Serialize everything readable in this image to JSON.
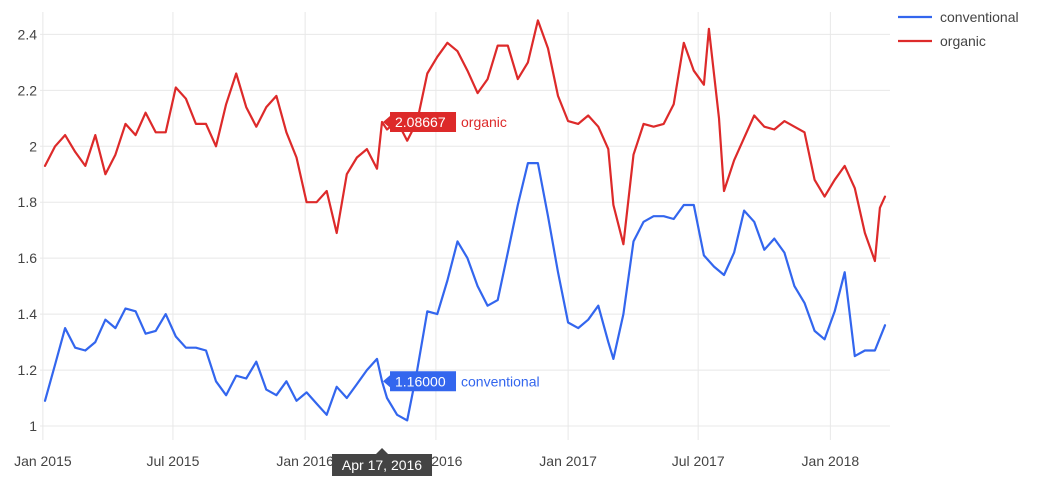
{
  "chart_data": {
    "type": "line",
    "y_ticks": [
      "1",
      "1.2",
      "1.4",
      "1.6",
      "1.8",
      "2",
      "2.2",
      "2.4"
    ],
    "x_ticks": [
      {
        "date": "2015-01-01",
        "label": "Jan 2015"
      },
      {
        "date": "2015-07-01",
        "label": "Jul 2015"
      },
      {
        "date": "2016-01-01",
        "label": "Jan 2016"
      },
      {
        "date": "2016-07-01",
        "label": "Jul 2016"
      },
      {
        "date": "2017-01-01",
        "label": "Jan 2017"
      },
      {
        "date": "2017-07-01",
        "label": "Jul 2017"
      },
      {
        "date": "2018-01-01",
        "label": "Jan 2018"
      }
    ],
    "x_range": [
      "2014-12-28",
      "2018-03-25"
    ],
    "ylim": [
      0.95,
      2.48
    ],
    "grid": true,
    "legend_position": "top-right",
    "series": [
      {
        "name": "conventional",
        "color": "#3366ee",
        "points": [
          [
            "2015-01-04",
            1.09
          ],
          [
            "2015-01-18",
            1.22
          ],
          [
            "2015-02-01",
            1.35
          ],
          [
            "2015-02-15",
            1.28
          ],
          [
            "2015-03-01",
            1.27
          ],
          [
            "2015-03-15",
            1.3
          ],
          [
            "2015-03-29",
            1.38
          ],
          [
            "2015-04-12",
            1.35
          ],
          [
            "2015-04-26",
            1.42
          ],
          [
            "2015-05-10",
            1.41
          ],
          [
            "2015-05-24",
            1.33
          ],
          [
            "2015-06-07",
            1.34
          ],
          [
            "2015-06-21",
            1.4
          ],
          [
            "2015-07-05",
            1.32
          ],
          [
            "2015-07-19",
            1.28
          ],
          [
            "2015-08-02",
            1.28
          ],
          [
            "2015-08-16",
            1.27
          ],
          [
            "2015-08-30",
            1.16
          ],
          [
            "2015-09-13",
            1.11
          ],
          [
            "2015-09-27",
            1.18
          ],
          [
            "2015-10-11",
            1.17
          ],
          [
            "2015-10-25",
            1.23
          ],
          [
            "2015-11-08",
            1.13
          ],
          [
            "2015-11-22",
            1.11
          ],
          [
            "2015-12-06",
            1.16
          ],
          [
            "2015-12-20",
            1.09
          ],
          [
            "2016-01-03",
            1.12
          ],
          [
            "2016-01-17",
            1.08
          ],
          [
            "2016-01-31",
            1.04
          ],
          [
            "2016-02-14",
            1.14
          ],
          [
            "2016-02-28",
            1.1
          ],
          [
            "2016-03-13",
            1.15
          ],
          [
            "2016-03-27",
            1.2
          ],
          [
            "2016-04-10",
            1.24
          ],
          [
            "2016-04-17",
            1.16
          ],
          [
            "2016-04-24",
            1.1
          ],
          [
            "2016-05-08",
            1.04
          ],
          [
            "2016-05-22",
            1.02
          ],
          [
            "2016-06-05",
            1.2
          ],
          [
            "2016-06-19",
            1.41
          ],
          [
            "2016-07-03",
            1.4
          ],
          [
            "2016-07-17",
            1.52
          ],
          [
            "2016-07-31",
            1.66
          ],
          [
            "2016-08-14",
            1.6
          ],
          [
            "2016-08-28",
            1.5
          ],
          [
            "2016-09-11",
            1.43
          ],
          [
            "2016-09-25",
            1.45
          ],
          [
            "2016-10-09",
            1.62
          ],
          [
            "2016-10-23",
            1.79
          ],
          [
            "2016-11-06",
            1.94
          ],
          [
            "2016-11-20",
            1.94
          ],
          [
            "2016-12-04",
            1.75
          ],
          [
            "2016-12-18",
            1.55
          ],
          [
            "2017-01-01",
            1.37
          ],
          [
            "2017-01-15",
            1.35
          ],
          [
            "2017-01-29",
            1.38
          ],
          [
            "2017-02-12",
            1.43
          ],
          [
            "2017-02-26",
            1.3
          ],
          [
            "2017-03-05",
            1.24
          ],
          [
            "2017-03-19",
            1.4
          ],
          [
            "2017-04-02",
            1.66
          ],
          [
            "2017-04-16",
            1.73
          ],
          [
            "2017-04-30",
            1.75
          ],
          [
            "2017-05-14",
            1.75
          ],
          [
            "2017-05-28",
            1.74
          ],
          [
            "2017-06-11",
            1.79
          ],
          [
            "2017-06-25",
            1.79
          ],
          [
            "2017-07-09",
            1.61
          ],
          [
            "2017-07-23",
            1.57
          ],
          [
            "2017-08-06",
            1.54
          ],
          [
            "2017-08-20",
            1.62
          ],
          [
            "2017-09-03",
            1.77
          ],
          [
            "2017-09-17",
            1.73
          ],
          [
            "2017-10-01",
            1.63
          ],
          [
            "2017-10-15",
            1.67
          ],
          [
            "2017-10-29",
            1.62
          ],
          [
            "2017-11-12",
            1.5
          ],
          [
            "2017-11-26",
            1.44
          ],
          [
            "2017-12-10",
            1.34
          ],
          [
            "2017-12-24",
            1.31
          ],
          [
            "2018-01-07",
            1.41
          ],
          [
            "2018-01-21",
            1.55
          ],
          [
            "2018-02-04",
            1.25
          ],
          [
            "2018-02-18",
            1.27
          ],
          [
            "2018-03-04",
            1.27
          ],
          [
            "2018-03-18",
            1.36
          ]
        ]
      },
      {
        "name": "organic",
        "color": "#dd2a2a",
        "points": [
          [
            "2015-01-04",
            1.93
          ],
          [
            "2015-01-18",
            2.0
          ],
          [
            "2015-02-01",
            2.04
          ],
          [
            "2015-02-15",
            1.98
          ],
          [
            "2015-03-01",
            1.93
          ],
          [
            "2015-03-15",
            2.04
          ],
          [
            "2015-03-29",
            1.9
          ],
          [
            "2015-04-12",
            1.97
          ],
          [
            "2015-04-26",
            2.08
          ],
          [
            "2015-05-10",
            2.04
          ],
          [
            "2015-05-24",
            2.12
          ],
          [
            "2015-06-07",
            2.05
          ],
          [
            "2015-06-21",
            2.05
          ],
          [
            "2015-07-05",
            2.21
          ],
          [
            "2015-07-19",
            2.17
          ],
          [
            "2015-08-02",
            2.08
          ],
          [
            "2015-08-16",
            2.08
          ],
          [
            "2015-08-30",
            2.0
          ],
          [
            "2015-09-13",
            2.15
          ],
          [
            "2015-09-27",
            2.26
          ],
          [
            "2015-10-11",
            2.14
          ],
          [
            "2015-10-25",
            2.07
          ],
          [
            "2015-11-08",
            2.14
          ],
          [
            "2015-11-22",
            2.18
          ],
          [
            "2015-12-06",
            2.05
          ],
          [
            "2015-12-20",
            1.96
          ],
          [
            "2016-01-03",
            1.8
          ],
          [
            "2016-01-17",
            1.8
          ],
          [
            "2016-01-31",
            1.84
          ],
          [
            "2016-02-14",
            1.69
          ],
          [
            "2016-02-28",
            1.9
          ],
          [
            "2016-03-13",
            1.96
          ],
          [
            "2016-03-27",
            1.99
          ],
          [
            "2016-04-10",
            1.92
          ],
          [
            "2016-04-17",
            2.08667
          ],
          [
            "2016-04-24",
            2.06
          ],
          [
            "2016-05-08",
            2.09
          ],
          [
            "2016-05-22",
            2.02
          ],
          [
            "2016-06-05",
            2.09
          ],
          [
            "2016-06-19",
            2.26
          ],
          [
            "2016-07-03",
            2.32
          ],
          [
            "2016-07-17",
            2.37
          ],
          [
            "2016-07-31",
            2.34
          ],
          [
            "2016-08-14",
            2.27
          ],
          [
            "2016-08-28",
            2.19
          ],
          [
            "2016-09-11",
            2.24
          ],
          [
            "2016-09-25",
            2.36
          ],
          [
            "2016-10-09",
            2.36
          ],
          [
            "2016-10-23",
            2.24
          ],
          [
            "2016-11-06",
            2.3
          ],
          [
            "2016-11-20",
            2.45
          ],
          [
            "2016-12-04",
            2.35
          ],
          [
            "2016-12-18",
            2.18
          ],
          [
            "2017-01-01",
            2.09
          ],
          [
            "2017-01-15",
            2.08
          ],
          [
            "2017-01-29",
            2.11
          ],
          [
            "2017-02-12",
            2.07
          ],
          [
            "2017-02-26",
            1.99
          ],
          [
            "2017-03-05",
            1.79
          ],
          [
            "2017-03-19",
            1.65
          ],
          [
            "2017-04-02",
            1.97
          ],
          [
            "2017-04-16",
            2.08
          ],
          [
            "2017-04-30",
            2.07
          ],
          [
            "2017-05-14",
            2.08
          ],
          [
            "2017-05-28",
            2.15
          ],
          [
            "2017-06-11",
            2.37
          ],
          [
            "2017-06-25",
            2.27
          ],
          [
            "2017-07-09",
            2.22
          ],
          [
            "2017-07-16",
            2.42
          ],
          [
            "2017-07-30",
            2.1
          ],
          [
            "2017-08-06",
            1.84
          ],
          [
            "2017-08-20",
            1.95
          ],
          [
            "2017-09-03",
            2.03
          ],
          [
            "2017-09-17",
            2.11
          ],
          [
            "2017-10-01",
            2.07
          ],
          [
            "2017-10-15",
            2.06
          ],
          [
            "2017-10-29",
            2.09
          ],
          [
            "2017-11-12",
            2.07
          ],
          [
            "2017-11-26",
            2.05
          ],
          [
            "2017-12-10",
            1.88
          ],
          [
            "2017-12-24",
            1.82
          ],
          [
            "2018-01-07",
            1.88
          ],
          [
            "2018-01-21",
            1.93
          ],
          [
            "2018-02-04",
            1.85
          ],
          [
            "2018-02-18",
            1.69
          ],
          [
            "2018-03-04",
            1.59
          ],
          [
            "2018-03-11",
            1.78
          ],
          [
            "2018-03-18",
            1.82
          ]
        ]
      }
    ],
    "hover": {
      "date_label": "Apr 17, 2016",
      "items": [
        {
          "value": "2.08667",
          "series": "organic",
          "color": "#dd2a2a",
          "y": 2.08667
        },
        {
          "value": "1.16000",
          "series": "conventional",
          "color": "#3366ee",
          "y": 1.16
        }
      ]
    }
  }
}
